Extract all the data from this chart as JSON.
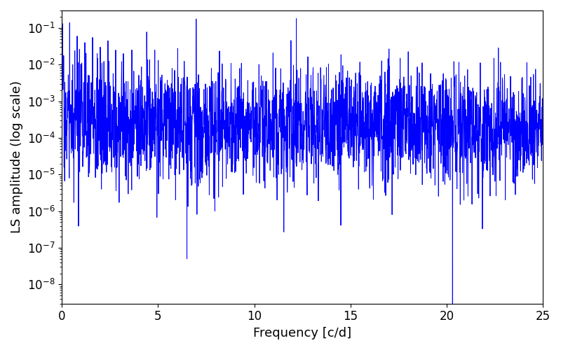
{
  "xlabel": "Frequency [c/d]",
  "ylabel": "LS amplitude (log scale)",
  "xlim": [
    0,
    25
  ],
  "ylim": [
    3e-09,
    0.3
  ],
  "line_color": "#0000ff",
  "line_width": 0.7,
  "background_color": "#ffffff",
  "seed": 17,
  "n_points": 2500,
  "freq_max": 25.0,
  "yscale": "log",
  "tick_label_size": 12,
  "axis_label_size": 13,
  "deep_spike_freq": 20.3,
  "deep_spike_val": 3e-09
}
